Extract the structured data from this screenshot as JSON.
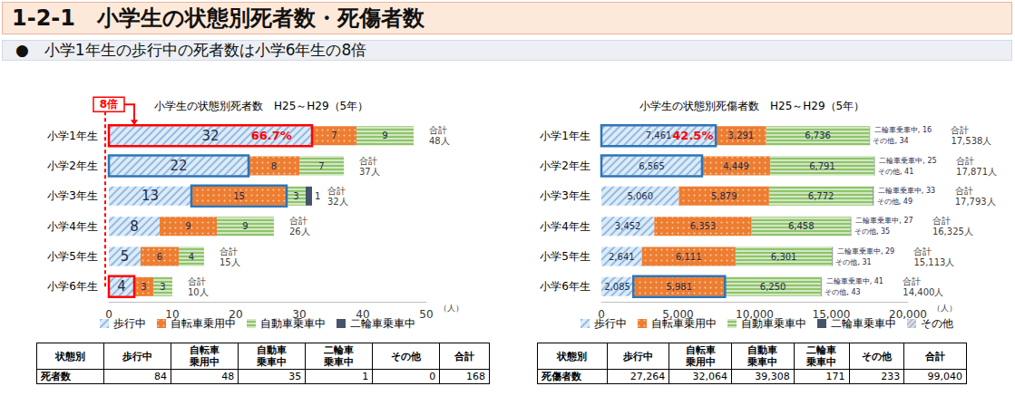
{
  "header": {
    "title": "1-2-1　小学生の状態別死者数・死傷者数"
  },
  "subtitle": "●　小学1年生の歩行中の死者数は小学6年生の8倍",
  "chart_data": [
    {
      "type": "bar",
      "orientation": "horizontal",
      "stacked": true,
      "data_labels": true,
      "grid": false,
      "legend": "bottom",
      "title": "小学生の状態別死者数　H25～H29（5年）",
      "x_label": "（人）",
      "categories": [
        "小学1年生",
        "小学2年生",
        "小学3年生",
        "小学4年生",
        "小学5年生",
        "小学6年生"
      ],
      "xlim": [
        0,
        50
      ],
      "xticks": [
        0,
        10,
        20,
        30,
        40,
        50
      ],
      "series": [
        {
          "name": "歩行中",
          "color": "#deebf7",
          "values": [
            32,
            22,
            13,
            8,
            5,
            4
          ]
        },
        {
          "name": "自転車乗用中",
          "color": "#ed7d31",
          "values": [
            7,
            8,
            15,
            9,
            6,
            3
          ]
        },
        {
          "name": "自動車乗車中",
          "color": "#8fc46a",
          "values": [
            9,
            7,
            3,
            9,
            4,
            3
          ]
        },
        {
          "name": "二輪車乗車中",
          "color": "#44546a",
          "values": [
            0,
            0,
            1,
            0,
            0,
            0
          ]
        }
      ],
      "total_label": "合計",
      "totals": [
        48,
        37,
        32,
        26,
        15,
        10
      ],
      "total_value_labels": [
        "48人",
        "37人",
        "32人",
        "26人",
        "15人",
        "10人"
      ],
      "annotations": [
        {
          "text": "66.7%",
          "category": "小学1年生",
          "series": "歩行中",
          "color": "#ff0000"
        },
        {
          "text": "8倍",
          "category": "小学6年生",
          "target": "小学1年生",
          "series": "歩行中",
          "color": "#ff0000"
        }
      ],
      "boxes": [
        {
          "category": "小学1年生",
          "series": "歩行中",
          "color": "#ff0000"
        },
        {
          "category": "小学2年生",
          "series": "歩行中",
          "color": "#2e75b6"
        },
        {
          "category": "小学3年生",
          "series": "自転車乗用中",
          "color": "#2e75b6"
        },
        {
          "category": "小学6年生",
          "series": "歩行中",
          "color": "#ff0000"
        }
      ]
    },
    {
      "type": "bar",
      "orientation": "horizontal",
      "stacked": true,
      "data_labels": true,
      "grid": false,
      "legend": "bottom",
      "title": "小学生の状態別死傷者数　H25～H29（5年）",
      "x_label": "（人）",
      "categories": [
        "小学1年生",
        "小学2年生",
        "小学3年生",
        "小学4年生",
        "小学5年生",
        "小学6年生"
      ],
      "xlim": [
        0,
        20000
      ],
      "xticks": [
        0,
        {
          "value": 5000,
          "label": "5,000"
        },
        {
          "value": 10000,
          "label": "10,000"
        },
        {
          "value": 15000,
          "label": "15,000"
        },
        {
          "value": 20000,
          "label": "20,000"
        }
      ],
      "series": [
        {
          "name": "歩行中",
          "color": "#deebf7",
          "values": [
            7461,
            6565,
            5060,
            3452,
            2641,
            2085
          ],
          "value_labels": [
            "7,461",
            "6,565",
            "5,060",
            "3,452",
            "2,641",
            "2,085"
          ]
        },
        {
          "name": "自転車乗用中",
          "color": "#ed7d31",
          "values": [
            3291,
            4449,
            5879,
            6353,
            6111,
            5981
          ],
          "value_labels": [
            "3,291",
            "4,449",
            "5,879",
            "6,353",
            "6,111",
            "5,981"
          ]
        },
        {
          "name": "自動車乗車中",
          "color": "#8fc46a",
          "values": [
            6736,
            6791,
            6772,
            6458,
            6301,
            6250
          ],
          "value_labels": [
            "6,736",
            "6,791",
            "6,772",
            "6,458",
            "6,301",
            "6,250"
          ]
        },
        {
          "name": "二輪車乗車中",
          "color": "#44546a",
          "values": [
            16,
            25,
            33,
            27,
            29,
            41
          ],
          "value_labels": [
            "二輪車乗車中, 16",
            "二輪車乗車中, 25",
            "二輪車乗車中, 33",
            "二輪車乗車中, 27",
            "二輪車乗車中, 29",
            "二輪車乗車中, 41"
          ]
        },
        {
          "name": "その他",
          "color": "#d6dce5",
          "values": [
            34,
            41,
            49,
            35,
            31,
            43
          ],
          "value_labels": [
            "その他, 34",
            "その他, 41",
            "その他, 49",
            "その他, 35",
            "その他, 31",
            "その他, 43"
          ]
        }
      ],
      "total_label": "合計",
      "totals": [
        17538,
        17871,
        17793,
        16325,
        15113,
        14400
      ],
      "total_value_labels": [
        "17,538人",
        "17,871人",
        "17,793人",
        "16,325人",
        "15,113人",
        "14,400人"
      ],
      "annotations": [
        {
          "text": "42.5%",
          "category": "小学1年生",
          "series": "歩行中",
          "color": "#ff0000"
        }
      ],
      "boxes": [
        {
          "category": "小学1年生",
          "series": "歩行中",
          "color": "#2e75b6"
        },
        {
          "category": "小学2年生",
          "series": "歩行中",
          "color": "#2e75b6"
        },
        {
          "category": "小学6年生",
          "series": "自転車乗用中",
          "color": "#2e75b6"
        }
      ]
    }
  ],
  "tables": [
    {
      "header": [
        "状態別",
        "歩行中",
        "自転車\n乗用中",
        "自動車\n乗車中",
        "二輪車\n乗車中",
        "その他",
        "合計"
      ],
      "rows": [
        [
          "死者数",
          "84",
          "48",
          "35",
          "1",
          "0",
          "168"
        ]
      ]
    },
    {
      "header": [
        "状態別",
        "歩行中",
        "自転車\n乗用中",
        "自動車\n乗車中",
        "二輪車\n乗車中",
        "その他",
        "合計"
      ],
      "rows": [
        [
          "死傷者数",
          "27,264",
          "32,064",
          "39,308",
          "171",
          "233",
          "99,040"
        ]
      ]
    }
  ]
}
